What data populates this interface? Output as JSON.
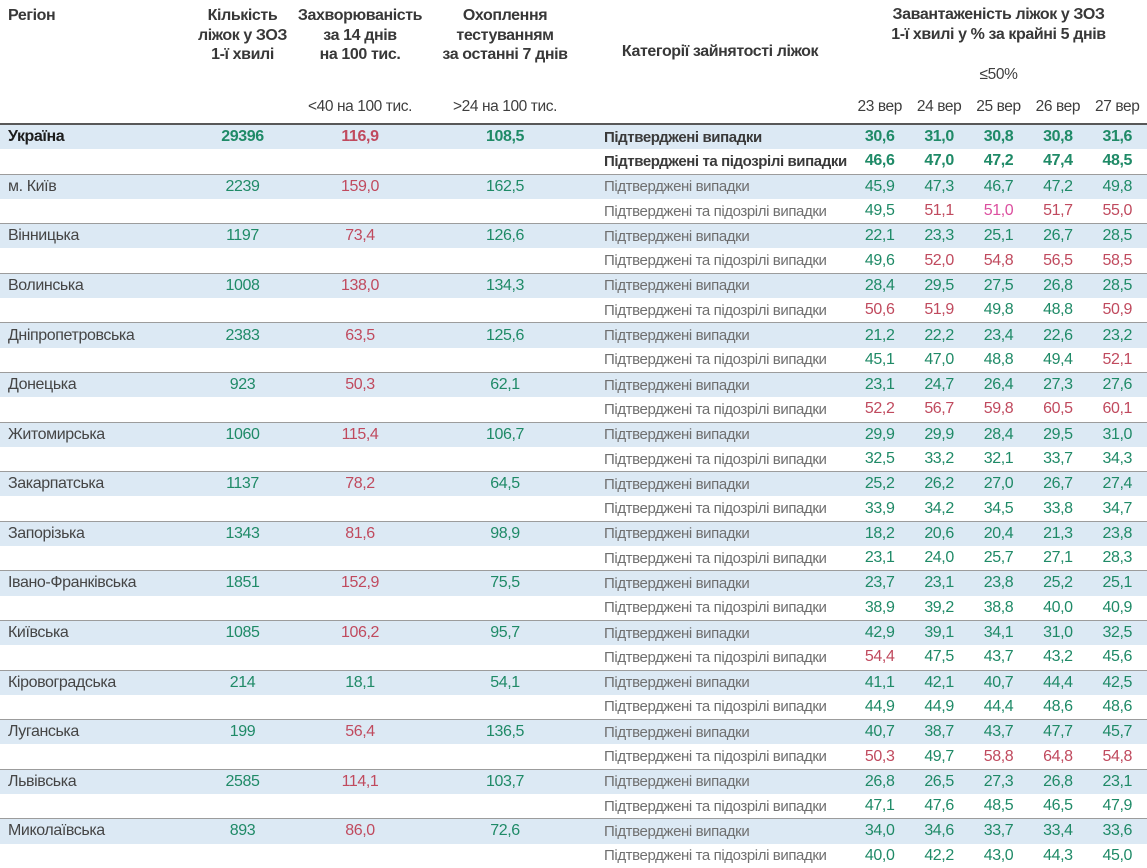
{
  "header": {
    "region": "Регіон",
    "beds": "Кількість\nліжок у ЗОЗ\n1-ї хвилі",
    "incidence": "Захворюваність\nза 14 днів\nна 100 тис.",
    "testing": "Охоплення\nтестуванням\nза останні 7 днів",
    "category": "Категорії зайнятості ліжок",
    "occupancy": "Завантаженість ліжок у ЗОЗ\n1-ї хвилі у % за крайні 5 днів",
    "incidence_threshold": "<40 на 100 тис.",
    "testing_threshold": ">24 на 100 тис.",
    "occupancy_threshold": "≤50%",
    "dates": [
      "23 вер",
      "24 вер",
      "25 вер",
      "26 вер",
      "27 вер"
    ]
  },
  "labels": {
    "confirmed": "Підтверджені випадки",
    "confirmed_suspected": "Підтверджені та підозрілі випадки"
  },
  "colors": {
    "green": "#1f8a67",
    "red": "#c04a5e",
    "pink": "#dc4f9f",
    "shaded_row_bg": "#dce9f4"
  },
  "regions": [
    {
      "name": "Україна",
      "bold": true,
      "beds": "29396",
      "incidence": "116,9",
      "incidence_color": "red",
      "testing": "108,5",
      "confirmed": {
        "values": [
          "30,6",
          "31,0",
          "30,8",
          "30,8",
          "31,6"
        ],
        "colors": [
          "green",
          "green",
          "green",
          "green",
          "green"
        ]
      },
      "suspected": {
        "values": [
          "46,6",
          "47,0",
          "47,2",
          "47,4",
          "48,5"
        ],
        "colors": [
          "green",
          "green",
          "green",
          "green",
          "green"
        ]
      }
    },
    {
      "name": "м. Київ",
      "bold": false,
      "beds": "2239",
      "incidence": "159,0",
      "incidence_color": "red",
      "testing": "162,5",
      "confirmed": {
        "values": [
          "45,9",
          "47,3",
          "46,7",
          "47,2",
          "49,8"
        ],
        "colors": [
          "green",
          "green",
          "green",
          "green",
          "green"
        ]
      },
      "suspected": {
        "values": [
          "49,5",
          "51,1",
          "51,0",
          "51,7",
          "55,0"
        ],
        "colors": [
          "green",
          "red",
          "pink",
          "red",
          "red"
        ]
      }
    },
    {
      "name": "Вінницька",
      "bold": false,
      "beds": "1197",
      "incidence": "73,4",
      "incidence_color": "red",
      "testing": "126,6",
      "confirmed": {
        "values": [
          "22,1",
          "23,3",
          "25,1",
          "26,7",
          "28,5"
        ],
        "colors": [
          "green",
          "green",
          "green",
          "green",
          "green"
        ]
      },
      "suspected": {
        "values": [
          "49,6",
          "52,0",
          "54,8",
          "56,5",
          "58,5"
        ],
        "colors": [
          "green",
          "red",
          "red",
          "red",
          "red"
        ]
      }
    },
    {
      "name": "Волинська",
      "bold": false,
      "beds": "1008",
      "incidence": "138,0",
      "incidence_color": "red",
      "testing": "134,3",
      "confirmed": {
        "values": [
          "28,4",
          "29,5",
          "27,5",
          "26,8",
          "28,5"
        ],
        "colors": [
          "green",
          "green",
          "green",
          "green",
          "green"
        ]
      },
      "suspected": {
        "values": [
          "50,6",
          "51,9",
          "49,8",
          "48,8",
          "50,9"
        ],
        "colors": [
          "red",
          "red",
          "green",
          "green",
          "red"
        ]
      }
    },
    {
      "name": "Дніпропетровська",
      "bold": false,
      "beds": "2383",
      "incidence": "63,5",
      "incidence_color": "red",
      "testing": "125,6",
      "confirmed": {
        "values": [
          "21,2",
          "22,2",
          "23,4",
          "22,6",
          "23,2"
        ],
        "colors": [
          "green",
          "green",
          "green",
          "green",
          "green"
        ]
      },
      "suspected": {
        "values": [
          "45,1",
          "47,0",
          "48,8",
          "49,4",
          "52,1"
        ],
        "colors": [
          "green",
          "green",
          "green",
          "green",
          "red"
        ]
      }
    },
    {
      "name": "Донецька",
      "bold": false,
      "beds": "923",
      "incidence": "50,3",
      "incidence_color": "red",
      "testing": "62,1",
      "confirmed": {
        "values": [
          "23,1",
          "24,7",
          "26,4",
          "27,3",
          "27,6"
        ],
        "colors": [
          "green",
          "green",
          "green",
          "green",
          "green"
        ]
      },
      "suspected": {
        "values": [
          "52,2",
          "56,7",
          "59,8",
          "60,5",
          "60,1"
        ],
        "colors": [
          "red",
          "red",
          "red",
          "red",
          "red"
        ]
      }
    },
    {
      "name": "Житомирська",
      "bold": false,
      "beds": "1060",
      "incidence": "115,4",
      "incidence_color": "red",
      "testing": "106,7",
      "confirmed": {
        "values": [
          "29,9",
          "29,9",
          "28,4",
          "29,5",
          "31,0"
        ],
        "colors": [
          "green",
          "green",
          "green",
          "green",
          "green"
        ]
      },
      "suspected": {
        "values": [
          "32,5",
          "33,2",
          "32,1",
          "33,7",
          "34,3"
        ],
        "colors": [
          "green",
          "green",
          "green",
          "green",
          "green"
        ]
      }
    },
    {
      "name": "Закарпатська",
      "bold": false,
      "beds": "1137",
      "incidence": "78,2",
      "incidence_color": "red",
      "testing": "64,5",
      "confirmed": {
        "values": [
          "25,2",
          "26,2",
          "27,0",
          "26,7",
          "27,4"
        ],
        "colors": [
          "green",
          "green",
          "green",
          "green",
          "green"
        ]
      },
      "suspected": {
        "values": [
          "33,9",
          "34,2",
          "34,5",
          "33,8",
          "34,7"
        ],
        "colors": [
          "green",
          "green",
          "green",
          "green",
          "green"
        ]
      }
    },
    {
      "name": "Запорізька",
      "bold": false,
      "beds": "1343",
      "incidence": "81,6",
      "incidence_color": "red",
      "testing": "98,9",
      "confirmed": {
        "values": [
          "18,2",
          "20,6",
          "20,4",
          "21,3",
          "23,8"
        ],
        "colors": [
          "green",
          "green",
          "green",
          "green",
          "green"
        ]
      },
      "suspected": {
        "values": [
          "23,1",
          "24,0",
          "25,7",
          "27,1",
          "28,3"
        ],
        "colors": [
          "green",
          "green",
          "green",
          "green",
          "green"
        ]
      }
    },
    {
      "name": "Івано-Франківська",
      "bold": false,
      "beds": "1851",
      "incidence": "152,9",
      "incidence_color": "red",
      "testing": "75,5",
      "confirmed": {
        "values": [
          "23,7",
          "23,1",
          "23,8",
          "25,2",
          "25,1"
        ],
        "colors": [
          "green",
          "green",
          "green",
          "green",
          "green"
        ]
      },
      "suspected": {
        "values": [
          "38,9",
          "39,2",
          "38,8",
          "40,0",
          "40,9"
        ],
        "colors": [
          "green",
          "green",
          "green",
          "green",
          "green"
        ]
      }
    },
    {
      "name": "Київська",
      "bold": false,
      "beds": "1085",
      "incidence": "106,2",
      "incidence_color": "red",
      "testing": "95,7",
      "confirmed": {
        "values": [
          "42,9",
          "39,1",
          "34,1",
          "31,0",
          "32,5"
        ],
        "colors": [
          "green",
          "green",
          "green",
          "green",
          "green"
        ]
      },
      "suspected": {
        "values": [
          "54,4",
          "47,5",
          "43,7",
          "43,2",
          "45,6"
        ],
        "colors": [
          "red",
          "green",
          "green",
          "green",
          "green"
        ]
      }
    },
    {
      "name": "Кіровоградська",
      "bold": false,
      "beds": "214",
      "incidence": "18,1",
      "incidence_color": "green",
      "testing": "54,1",
      "confirmed": {
        "values": [
          "41,1",
          "42,1",
          "40,7",
          "44,4",
          "42,5"
        ],
        "colors": [
          "green",
          "green",
          "green",
          "green",
          "green"
        ]
      },
      "suspected": {
        "values": [
          "44,9",
          "44,9",
          "44,4",
          "48,6",
          "48,6"
        ],
        "colors": [
          "green",
          "green",
          "green",
          "green",
          "green"
        ]
      }
    },
    {
      "name": "Луганська",
      "bold": false,
      "beds": "199",
      "incidence": "56,4",
      "incidence_color": "red",
      "testing": "136,5",
      "confirmed": {
        "values": [
          "40,7",
          "38,7",
          "43,7",
          "47,7",
          "45,7"
        ],
        "colors": [
          "green",
          "green",
          "green",
          "green",
          "green"
        ]
      },
      "suspected": {
        "values": [
          "50,3",
          "49,7",
          "58,8",
          "64,8",
          "54,8"
        ],
        "colors": [
          "red",
          "green",
          "red",
          "red",
          "red"
        ]
      }
    },
    {
      "name": "Львівська",
      "bold": false,
      "beds": "2585",
      "incidence": "114,1",
      "incidence_color": "red",
      "testing": "103,7",
      "confirmed": {
        "values": [
          "26,8",
          "26,5",
          "27,3",
          "26,8",
          "23,1"
        ],
        "colors": [
          "green",
          "green",
          "green",
          "green",
          "green"
        ]
      },
      "suspected": {
        "values": [
          "47,1",
          "47,6",
          "48,5",
          "46,5",
          "47,9"
        ],
        "colors": [
          "green",
          "green",
          "green",
          "green",
          "green"
        ]
      }
    },
    {
      "name": "Миколаївська",
      "bold": false,
      "beds": "893",
      "incidence": "86,0",
      "incidence_color": "red",
      "testing": "72,6",
      "confirmed": {
        "values": [
          "34,0",
          "34,6",
          "33,7",
          "33,4",
          "33,6"
        ],
        "colors": [
          "green",
          "green",
          "green",
          "green",
          "green"
        ]
      },
      "suspected": {
        "values": [
          "40,0",
          "42,2",
          "43,0",
          "44,3",
          "45,0"
        ],
        "colors": [
          "green",
          "green",
          "green",
          "green",
          "green"
        ]
      }
    }
  ]
}
